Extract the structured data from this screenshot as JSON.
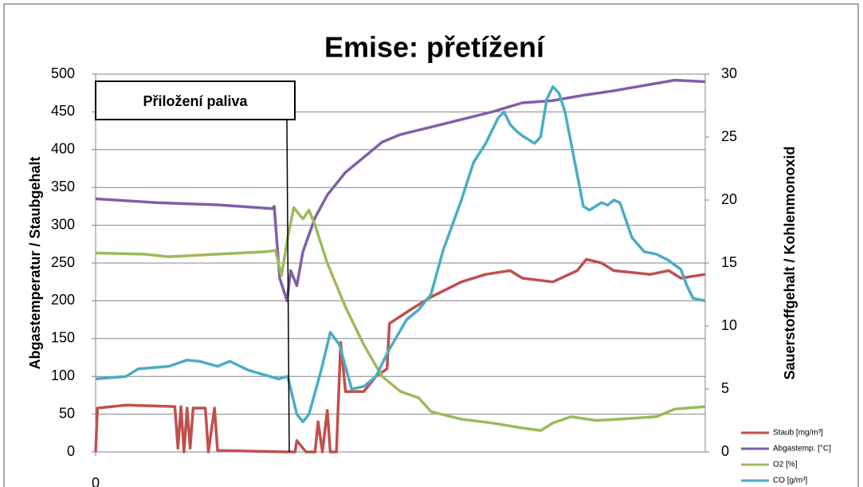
{
  "chart_data": {
    "type": "line",
    "title": "Emise: přetížení",
    "ylabel": "Abgastemperatur / Staubgehalt",
    "y2label": "Sauerstoffgehalt / Kohlenmonoxid",
    "annotation": "Přiložení paliva",
    "xlim": [
      0,
      100
    ],
    "xticks": [
      0
    ],
    "ylim": [
      0,
      500
    ],
    "yticks": [
      0,
      50,
      100,
      150,
      200,
      250,
      300,
      350,
      400,
      450,
      500
    ],
    "y2lim": [
      0,
      30
    ],
    "y2ticks": [
      0,
      5,
      10,
      15,
      20,
      25,
      30
    ],
    "grid": true,
    "legend": "lower right",
    "series": [
      {
        "name": "Staub [mg/m³]",
        "color": "#c0504d",
        "x": [
          0,
          0.3,
          5,
          13,
          13.5,
          14,
          14.5,
          15,
          15.5,
          16,
          18,
          18.5,
          19.5,
          20,
          31.4,
          32.7,
          33,
          34.5,
          36,
          36.5,
          37.2,
          38,
          38.5,
          39.5,
          40.2,
          41,
          44,
          46,
          47.8,
          48.2,
          52,
          55,
          60,
          64,
          68,
          70,
          75,
          79,
          80.5,
          83,
          85,
          91,
          94,
          96,
          100
        ],
        "values": [
          0,
          58,
          62,
          60,
          5,
          60,
          0,
          58,
          5,
          58,
          58,
          0,
          58,
          2,
          0,
          0,
          15,
          0,
          0,
          40,
          0,
          55,
          0,
          0,
          145,
          80,
          80,
          100,
          110,
          170,
          190,
          205,
          225,
          235,
          240,
          230,
          225,
          240,
          255,
          250,
          240,
          235,
          240,
          230,
          235
        ]
      },
      {
        "name": "Abgastemp. [°C]",
        "color": "#7f5fa8",
        "x": [
          0,
          10,
          20,
          29,
          29.3,
          30.2,
          31.4,
          32,
          33,
          34,
          36,
          38,
          41,
          44,
          47,
          50,
          55,
          60,
          65,
          70,
          75,
          80,
          85,
          90,
          95,
          100
        ],
        "values": [
          335,
          330,
          327,
          322,
          325,
          230,
          200,
          240,
          220,
          265,
          310,
          340,
          370,
          390,
          410,
          420,
          430,
          440,
          450,
          462,
          465,
          472,
          478,
          485,
          492,
          490
        ]
      },
      {
        "name": "O2 [%]",
        "color": "#9bbb59",
        "axis": "y2",
        "x": [
          0,
          8,
          12,
          20,
          28,
          29.5,
          30.5,
          31.5,
          32.5,
          34,
          35,
          36,
          38,
          41,
          44,
          47,
          50,
          53,
          55,
          60,
          65,
          70,
          73,
          75,
          78,
          82,
          86,
          92,
          95,
          100
        ],
        "values": [
          15.8,
          15.7,
          15.5,
          15.7,
          15.9,
          16,
          14,
          17,
          19.4,
          18.5,
          19.2,
          18,
          15,
          11.5,
          8.5,
          6,
          4.8,
          4.3,
          3.2,
          2.6,
          2.3,
          1.9,
          1.7,
          2.3,
          2.8,
          2.5,
          2.6,
          2.8,
          3.4,
          3.6
        ]
      },
      {
        "name": "CO [g/m³]",
        "color": "#4bacc6",
        "axis": "y2",
        "x": [
          0,
          5,
          7,
          12,
          15,
          17,
          20,
          22,
          25,
          30,
          31.5,
          32,
          33,
          34,
          35,
          37,
          38.5,
          40,
          42,
          44,
          46,
          48,
          51,
          53,
          55,
          57,
          60,
          62,
          64,
          66,
          67,
          68,
          69,
          70,
          72,
          73,
          74,
          75,
          76,
          77,
          79,
          80,
          81,
          83,
          84,
          85,
          86,
          88,
          90,
          92,
          94,
          96,
          97,
          98,
          100
        ],
        "values": [
          5.8,
          6.0,
          6.6,
          6.8,
          7.3,
          7.2,
          6.8,
          7.2,
          6.5,
          5.8,
          6.0,
          5.0,
          3.0,
          2.4,
          3.0,
          6.5,
          9.5,
          8.5,
          5.0,
          5.2,
          6.0,
          8.0,
          10.5,
          11.3,
          12.5,
          16,
          20,
          23,
          24.5,
          26.5,
          27,
          26,
          25.5,
          25.1,
          24.5,
          25,
          28,
          29,
          28.5,
          27,
          22,
          19.5,
          19.2,
          19.8,
          19.6,
          20,
          19.8,
          17,
          15.9,
          15.7,
          15.2,
          14.5,
          13.2,
          12.2,
          12
        ]
      }
    ]
  }
}
